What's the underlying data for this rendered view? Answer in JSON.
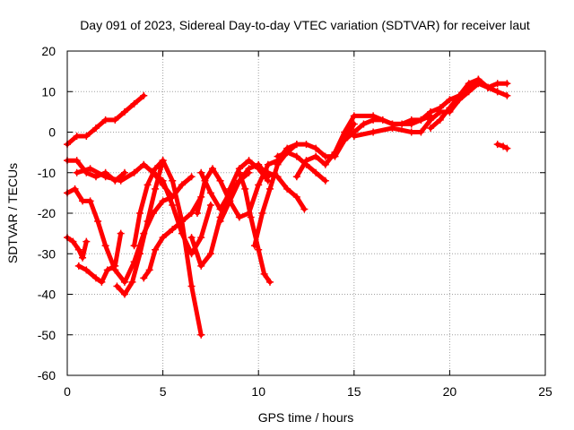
{
  "chart_data": {
    "type": "line",
    "title": "Day 091 of 2023, Sidereal Day-to-day VTEC variation (SDTVAR) for receiver laut",
    "xlabel": "GPS time / hours",
    "ylabel": "SDTVAR / TECUs",
    "xlim": [
      0,
      25
    ],
    "ylim": [
      -60,
      20
    ],
    "xticks": [
      0,
      5,
      10,
      15,
      20,
      25
    ],
    "yticks": [
      -60,
      -50,
      -40,
      -30,
      -20,
      -10,
      0,
      10,
      20
    ],
    "grid": true,
    "legend": "none",
    "color": "#ff0000",
    "marker": "plus",
    "series": [
      {
        "name": "trace-1",
        "x": [
          0.0,
          0.5,
          1.0,
          1.5,
          2.0,
          2.5,
          3.0,
          3.5,
          4.0
        ],
        "y": [
          -3,
          -1,
          -1,
          1,
          3,
          3,
          5,
          7,
          9
        ]
      },
      {
        "name": "trace-2",
        "x": [
          0.0,
          0.5,
          1.0,
          1.5,
          2.0,
          2.5,
          3.0
        ],
        "y": [
          -7,
          -7,
          -10,
          -11,
          -10,
          -12,
          -10
        ]
      },
      {
        "name": "trace-3",
        "x": [
          0.0,
          0.4,
          0.8,
          1.2,
          1.6,
          2.0,
          2.5,
          3.0,
          3.5,
          4.0,
          4.5,
          5.0,
          5.5
        ],
        "y": [
          -15,
          -14,
          -17,
          -17,
          -22,
          -28,
          -34,
          -37,
          -32,
          -25,
          -20,
          -17,
          -16
        ]
      },
      {
        "name": "trace-4",
        "x": [
          0.0,
          0.3,
          0.6,
          0.8,
          1.0
        ],
        "y": [
          -26,
          -27,
          -29,
          -31,
          -27
        ]
      },
      {
        "name": "trace-5",
        "x": [
          0.6,
          1.0,
          1.5,
          1.8,
          2.1,
          2.5,
          2.8
        ],
        "y": [
          -33,
          -34,
          -36,
          -37,
          -34,
          -33,
          -25
        ]
      },
      {
        "name": "trace-6",
        "x": [
          0.5,
          1.2,
          2.0,
          2.8,
          3.5,
          4.0,
          4.5,
          5.0,
          5.5,
          6.0,
          6.5
        ],
        "y": [
          -10,
          -9,
          -11,
          -12,
          -10,
          -8,
          -10,
          -13,
          -16,
          -13,
          -11
        ]
      },
      {
        "name": "trace-7",
        "x": [
          2.6,
          3.0,
          3.4,
          3.8,
          4.2,
          4.6,
          5.0
        ],
        "y": [
          -38,
          -40,
          -37,
          -30,
          -22,
          -14,
          -7
        ]
      },
      {
        "name": "trace-8",
        "x": [
          3.5,
          3.8,
          4.2,
          4.6,
          5.0,
          5.5,
          6.0,
          6.5,
          7.0
        ],
        "y": [
          -28,
          -20,
          -13,
          -9,
          -7,
          -12,
          -22,
          -38,
          -50
        ]
      },
      {
        "name": "trace-9",
        "x": [
          4.0,
          4.3,
          4.6,
          5.0,
          5.5,
          6.0,
          6.5,
          7.0
        ],
        "y": [
          -36,
          -34,
          -29,
          -26,
          -24,
          -22,
          -20,
          -16
        ]
      },
      {
        "name": "trace-10",
        "x": [
          4.5,
          5.0,
          5.5,
          6.0,
          6.5,
          7.0,
          7.5
        ],
        "y": [
          -10,
          -12,
          -18,
          -25,
          -30,
          -26,
          -18
        ]
      },
      {
        "name": "trace-11",
        "x": [
          6.5,
          7.0,
          7.5,
          8.0,
          8.5,
          9.0,
          9.5,
          10.0,
          10.5
        ],
        "y": [
          -26,
          -33,
          -30,
          -21,
          -14,
          -9,
          -7,
          -9,
          -12
        ]
      },
      {
        "name": "trace-12",
        "x": [
          6.8,
          7.2,
          7.6,
          8.0,
          8.5,
          9.0,
          9.5,
          10.0,
          10.5,
          11.0,
          11.5,
          12.0
        ],
        "y": [
          -20,
          -12,
          -9,
          -12,
          -17,
          -21,
          -20,
          -13,
          -8,
          -7,
          -4,
          -3
        ]
      },
      {
        "name": "trace-13",
        "x": [
          7.0,
          7.5,
          8.0,
          8.5,
          9.0,
          9.5
        ],
        "y": [
          -10,
          -15,
          -19,
          -15,
          -12,
          -10
        ]
      },
      {
        "name": "trace-14",
        "x": [
          8.0,
          8.5,
          9.0,
          9.5,
          10.0,
          10.5
        ],
        "y": [
          -22,
          -17,
          -12,
          -9,
          -8,
          -11
        ]
      },
      {
        "name": "trace-15",
        "x": [
          9.0,
          9.3,
          9.6,
          10.0,
          10.3,
          10.6
        ],
        "y": [
          -10,
          -14,
          -21,
          -29,
          -35,
          -37
        ]
      },
      {
        "name": "trace-16",
        "x": [
          9.8,
          10.2,
          10.6,
          11.0,
          11.5,
          12.0,
          12.5,
          13.0,
          13.5,
          14.0,
          14.5,
          15.0
        ],
        "y": [
          -28,
          -20,
          -14,
          -8,
          -5,
          -3,
          -3,
          -4,
          -6,
          -6,
          -2,
          2
        ]
      },
      {
        "name": "trace-17",
        "x": [
          10.5,
          11.0,
          11.5,
          12.0,
          12.4
        ],
        "y": [
          -10,
          -11,
          -14,
          -16,
          -19
        ]
      },
      {
        "name": "trace-18",
        "x": [
          12.0,
          12.5,
          13.0,
          13.5,
          14.0,
          14.5,
          15.0,
          15.5,
          16.0,
          16.5,
          17.0,
          17.5,
          18.0,
          18.5,
          19.0
        ],
        "y": [
          -11,
          -7,
          -6,
          -8,
          -5,
          -2,
          0,
          2,
          3,
          3,
          2,
          2,
          3,
          3,
          4
        ]
      },
      {
        "name": "trace-19",
        "x": [
          11.0,
          11.5,
          12.0,
          12.5,
          13.0,
          13.5
        ],
        "y": [
          -6,
          -5,
          -6,
          -8,
          -10,
          -12
        ]
      },
      {
        "name": "trace-20",
        "x": [
          14.0,
          14.5,
          15.0,
          16.0,
          17.0,
          18.0,
          18.5,
          19.0,
          19.5,
          20.0,
          20.5,
          21.0,
          21.5,
          22.0,
          22.5,
          23.0
        ],
        "y": [
          -5,
          0,
          4,
          4,
          2,
          2,
          3,
          5,
          6,
          8,
          9,
          11,
          13,
          11,
          12,
          12
        ]
      },
      {
        "name": "trace-21",
        "x": [
          15.0,
          16.0,
          17.0,
          18.0,
          18.5,
          19.0,
          19.5,
          20.0,
          20.5,
          21.0,
          21.5,
          22.0,
          22.5,
          23.0
        ],
        "y": [
          -1,
          0,
          1,
          0,
          0,
          3,
          5,
          5,
          8,
          10,
          12,
          11,
          10,
          9
        ]
      },
      {
        "name": "trace-22",
        "x": [
          19.0,
          19.5,
          20.0,
          20.5,
          21.0,
          21.5,
          22.0,
          22.5
        ],
        "y": [
          1,
          3,
          6,
          9,
          12,
          13,
          11,
          10
        ]
      },
      {
        "name": "trace-23",
        "x": [
          22.5,
          22.8,
          23.0
        ],
        "y": [
          -3,
          -3.5,
          -4
        ]
      }
    ]
  }
}
